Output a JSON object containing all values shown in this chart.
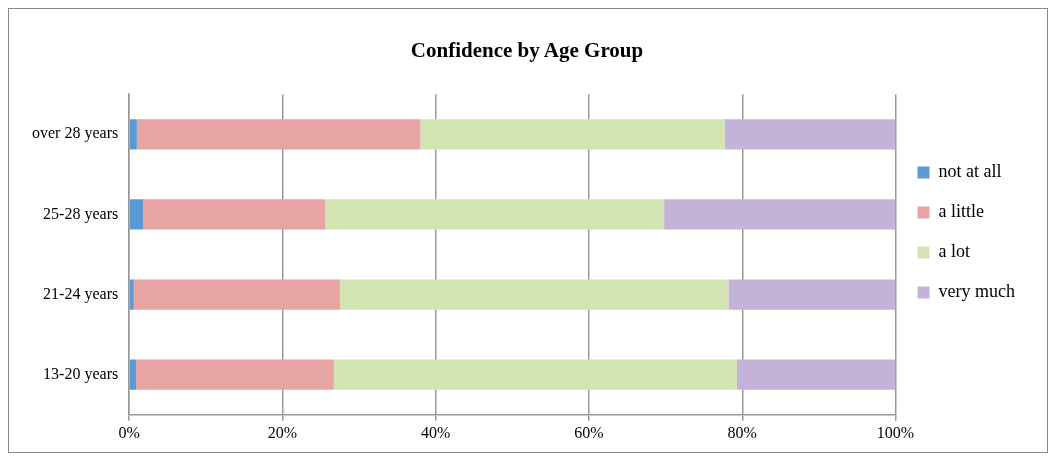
{
  "chart_data": {
    "type": "bar",
    "title": "Confidence by Age Group",
    "orientation": "horizontal",
    "stacked": true,
    "categories": [
      "over 28 years",
      "25-28 years",
      "21-24 years",
      "13-20 years"
    ],
    "series": [
      {
        "name": "not at all",
        "color": "#5b9bd5",
        "values": [
          1.0,
          1.8,
          0.6,
          0.9
        ]
      },
      {
        "name": "a little",
        "color": "#e6a5a3",
        "values": [
          37.0,
          23.8,
          26.9,
          25.8
        ]
      },
      {
        "name": "a lot",
        "color": "#d3e3b2",
        "values": [
          39.7,
          44.2,
          50.7,
          52.6
        ]
      },
      {
        "name": "very much",
        "color": "#c3b3d9",
        "values": [
          22.3,
          30.2,
          21.8,
          20.7
        ]
      }
    ],
    "xlim": [
      0,
      100
    ],
    "xticks": [
      {
        "value": 0,
        "label": "0%"
      },
      {
        "value": 20,
        "label": "20%"
      },
      {
        "value": 40,
        "label": "40%"
      },
      {
        "value": 60,
        "label": "60%"
      },
      {
        "value": 80,
        "label": "80%"
      },
      {
        "value": 100,
        "label": "100%"
      }
    ],
    "grid": "x",
    "legend": "right"
  }
}
